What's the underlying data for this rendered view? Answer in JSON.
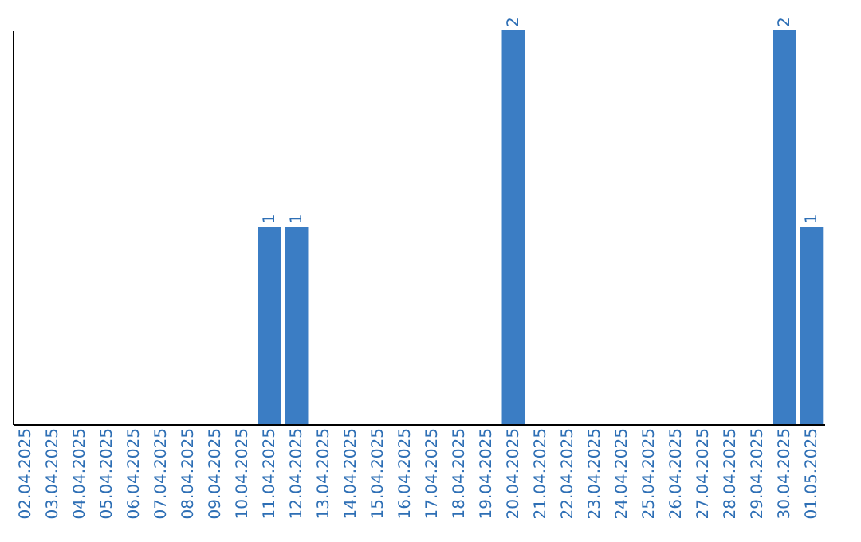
{
  "chart_data": {
    "type": "bar",
    "categories": [
      "02.04.2025",
      "03.04.2025",
      "04.04.2025",
      "05.04.2025",
      "06.04.2025",
      "07.04.2025",
      "08.04.2025",
      "09.04.2025",
      "10.04.2025",
      "11.04.2025",
      "12.04.2025",
      "13.04.2025",
      "14.04.2025",
      "15.04.2025",
      "16.04.2025",
      "17.04.2025",
      "18.04.2025",
      "19.04.2025",
      "20.04.2025",
      "21.04.2025",
      "22.04.2025",
      "23.04.2025",
      "24.04.2025",
      "25.04.2025",
      "26.04.2025",
      "27.04.2025",
      "28.04.2025",
      "29.04.2025",
      "30.04.2025",
      "01.05.2025"
    ],
    "values": [
      0,
      0,
      0,
      0,
      0,
      0,
      0,
      0,
      0,
      1,
      1,
      0,
      0,
      0,
      0,
      0,
      0,
      0,
      2,
      0,
      0,
      0,
      0,
      0,
      0,
      0,
      0,
      0,
      2,
      1
    ],
    "color": "#3b7dc4",
    "value_labels": [
      null,
      null,
      null,
      null,
      null,
      null,
      null,
      null,
      null,
      "1",
      "1",
      null,
      null,
      null,
      null,
      null,
      null,
      null,
      "2",
      null,
      null,
      null,
      null,
      null,
      null,
      null,
      null,
      null,
      "2",
      "1"
    ],
    "tick_labels": "x"
  }
}
